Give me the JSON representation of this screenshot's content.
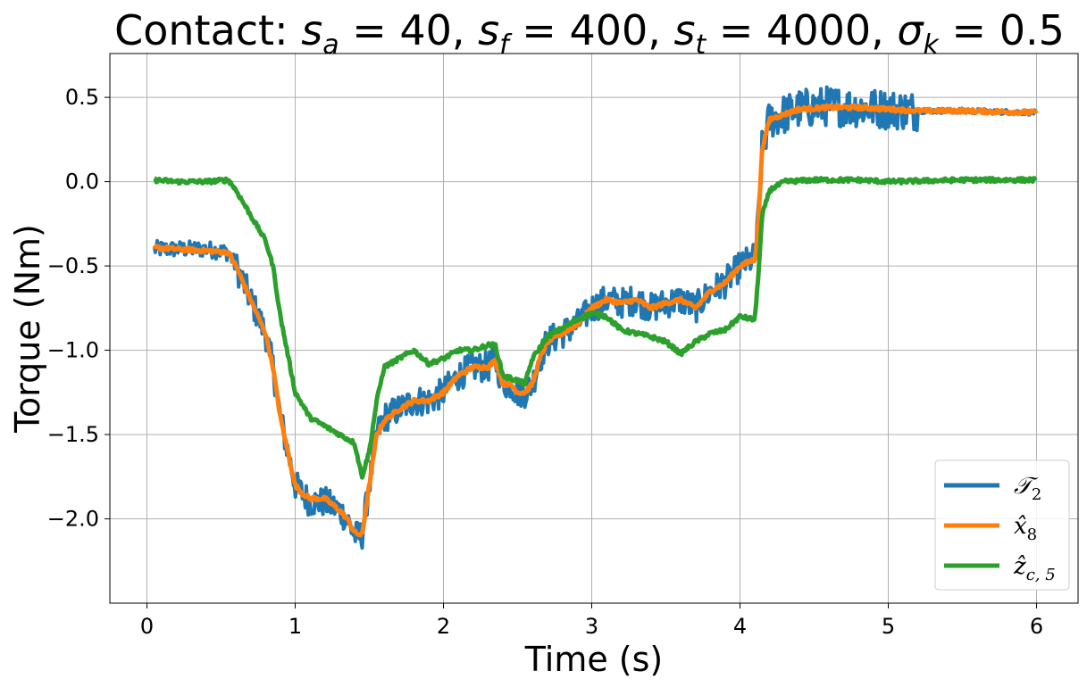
{
  "chart_data": {
    "type": "line",
    "title": "Contact: s_a = 40, s_f = 400, s_t = 4000, σ_k = 0.5",
    "xlabel": "Time (s)",
    "ylabel": "Torque (Nm)",
    "xlim": [
      -0.25,
      6.28
    ],
    "ylim": [
      -2.5,
      0.76
    ],
    "xticks": [
      0,
      1,
      2,
      3,
      4,
      5,
      6
    ],
    "xtick_labels": [
      "0",
      "1",
      "2",
      "3",
      "4",
      "5",
      "6"
    ],
    "yticks": [
      0.5,
      0.0,
      -0.5,
      -1.0,
      -1.5,
      -2.0
    ],
    "ytick_labels": [
      "0.5",
      "0.0",
      "−0.5",
      "−1.0",
      "−1.5",
      "−2.0"
    ],
    "grid": true,
    "legend_position": "lower-right",
    "series": [
      {
        "name": "𝒯₂",
        "color": "#1f77b4",
        "noise": 0.09,
        "x": [
          0.05,
          0.2,
          0.4,
          0.55,
          0.6,
          0.7,
          0.8,
          0.85,
          0.9,
          0.95,
          1.0,
          1.05,
          1.1,
          1.2,
          1.3,
          1.35,
          1.4,
          1.45,
          1.5,
          1.55,
          1.6,
          1.7,
          1.8,
          1.9,
          2.0,
          2.1,
          2.2,
          2.3,
          2.35,
          2.4,
          2.45,
          2.5,
          2.55,
          2.6,
          2.65,
          2.7,
          2.8,
          2.9,
          3.0,
          3.1,
          3.2,
          3.3,
          3.4,
          3.5,
          3.6,
          3.7,
          3.8,
          3.9,
          4.0,
          4.1,
          4.12,
          4.15,
          4.2,
          4.3,
          4.4,
          4.6,
          4.8,
          5.0,
          5.2,
          5.5,
          6.0
        ],
        "y": [
          -0.4,
          -0.4,
          -0.4,
          -0.42,
          -0.5,
          -0.7,
          -0.9,
          -1.1,
          -1.4,
          -1.6,
          -1.8,
          -1.85,
          -1.9,
          -1.9,
          -1.95,
          -2.0,
          -2.1,
          -2.1,
          -1.8,
          -1.5,
          -1.4,
          -1.35,
          -1.3,
          -1.3,
          -1.25,
          -1.15,
          -1.1,
          -1.1,
          -1.05,
          -1.2,
          -1.2,
          -1.25,
          -1.25,
          -1.2,
          -1.05,
          -0.95,
          -0.9,
          -0.85,
          -0.75,
          -0.7,
          -0.72,
          -0.7,
          -0.75,
          -0.72,
          -0.7,
          -0.75,
          -0.65,
          -0.6,
          -0.5,
          -0.45,
          -0.3,
          0.2,
          0.37,
          0.4,
          0.43,
          0.45,
          0.44,
          0.43,
          0.42,
          0.42,
          0.41
        ]
      },
      {
        "name": "x̂₈",
        "color": "#ff7f0e",
        "noise": 0.012,
        "x": [
          0.05,
          0.2,
          0.4,
          0.55,
          0.6,
          0.7,
          0.8,
          0.85,
          0.9,
          0.95,
          1.0,
          1.05,
          1.1,
          1.2,
          1.3,
          1.35,
          1.4,
          1.45,
          1.5,
          1.55,
          1.6,
          1.7,
          1.8,
          1.9,
          2.0,
          2.1,
          2.2,
          2.3,
          2.35,
          2.4,
          2.45,
          2.5,
          2.55,
          2.6,
          2.65,
          2.7,
          2.8,
          2.9,
          3.0,
          3.1,
          3.2,
          3.3,
          3.4,
          3.5,
          3.6,
          3.7,
          3.8,
          3.9,
          4.0,
          4.1,
          4.12,
          4.15,
          4.2,
          4.3,
          4.4,
          4.6,
          4.8,
          5.0,
          5.2,
          5.5,
          6.0
        ],
        "y": [
          -0.39,
          -0.4,
          -0.41,
          -0.42,
          -0.5,
          -0.7,
          -0.9,
          -1.1,
          -1.4,
          -1.6,
          -1.8,
          -1.85,
          -1.88,
          -1.88,
          -1.95,
          -2.0,
          -2.08,
          -2.1,
          -1.8,
          -1.5,
          -1.42,
          -1.35,
          -1.3,
          -1.3,
          -1.25,
          -1.15,
          -1.1,
          -1.1,
          -1.06,
          -1.2,
          -1.2,
          -1.25,
          -1.25,
          -1.2,
          -1.05,
          -0.95,
          -0.9,
          -0.85,
          -0.75,
          -0.7,
          -0.72,
          -0.7,
          -0.75,
          -0.72,
          -0.7,
          -0.75,
          -0.65,
          -0.6,
          -0.5,
          -0.46,
          -0.3,
          0.2,
          0.37,
          0.4,
          0.43,
          0.44,
          0.44,
          0.43,
          0.42,
          0.42,
          0.41
        ]
      },
      {
        "name": "ẑ_{c,5}",
        "color": "#2ca02c",
        "noise": 0.012,
        "x": [
          0.05,
          0.2,
          0.4,
          0.55,
          0.6,
          0.7,
          0.8,
          0.85,
          0.9,
          1.0,
          1.1,
          1.2,
          1.3,
          1.4,
          1.45,
          1.5,
          1.55,
          1.6,
          1.7,
          1.8,
          1.9,
          2.0,
          2.1,
          2.2,
          2.3,
          2.35,
          2.4,
          2.5,
          2.55,
          2.6,
          2.7,
          2.8,
          2.9,
          3.0,
          3.1,
          3.2,
          3.3,
          3.4,
          3.5,
          3.6,
          3.7,
          3.8,
          3.9,
          4.0,
          4.1,
          4.12,
          4.15,
          4.2,
          4.3,
          4.5,
          4.8,
          5.0,
          5.5,
          6.0
        ],
        "y": [
          0.01,
          0.0,
          0.0,
          0.01,
          -0.05,
          -0.2,
          -0.35,
          -0.5,
          -0.8,
          -1.25,
          -1.4,
          -1.45,
          -1.5,
          -1.55,
          -1.75,
          -1.6,
          -1.3,
          -1.1,
          -1.05,
          -1.0,
          -1.08,
          -1.05,
          -1.0,
          -1.0,
          -0.97,
          -0.97,
          -1.15,
          -1.18,
          -1.2,
          -1.05,
          -0.92,
          -0.87,
          -0.82,
          -0.78,
          -0.8,
          -0.88,
          -0.9,
          -0.92,
          -0.95,
          -1.02,
          -0.95,
          -0.9,
          -0.88,
          -0.8,
          -0.82,
          -0.6,
          -0.2,
          -0.05,
          0.0,
          0.01,
          0.01,
          0.0,
          0.01,
          0.01
        ]
      }
    ]
  },
  "legend": {
    "entries": [
      {
        "main": "𝒯",
        "sub": "2"
      },
      {
        "main": "x̂",
        "sub": "8"
      },
      {
        "main": "ẑ",
        "sub": "c, 5"
      }
    ]
  }
}
